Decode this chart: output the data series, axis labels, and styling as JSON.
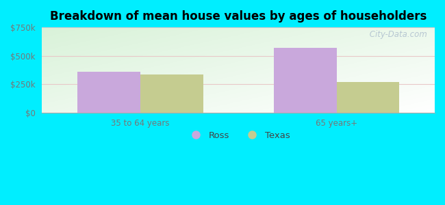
{
  "title": "Breakdown of mean house values by ages of householders",
  "categories": [
    "35 to 64 years",
    "65 years+"
  ],
  "ross_values": [
    360000,
    570000
  ],
  "texas_values": [
    335000,
    270000
  ],
  "ross_color": "#c9a8dc",
  "texas_color": "#c5cc90",
  "ylim": [
    0,
    750000
  ],
  "yticks": [
    0,
    250000,
    500000,
    750000
  ],
  "ytick_labels": [
    "$0",
    "$250k",
    "$500k",
    "$750k"
  ],
  "bar_width": 0.32,
  "background_color": "#00eeff",
  "legend_labels": [
    "Ross",
    "Texas"
  ],
  "watermark": " City-Data.com"
}
